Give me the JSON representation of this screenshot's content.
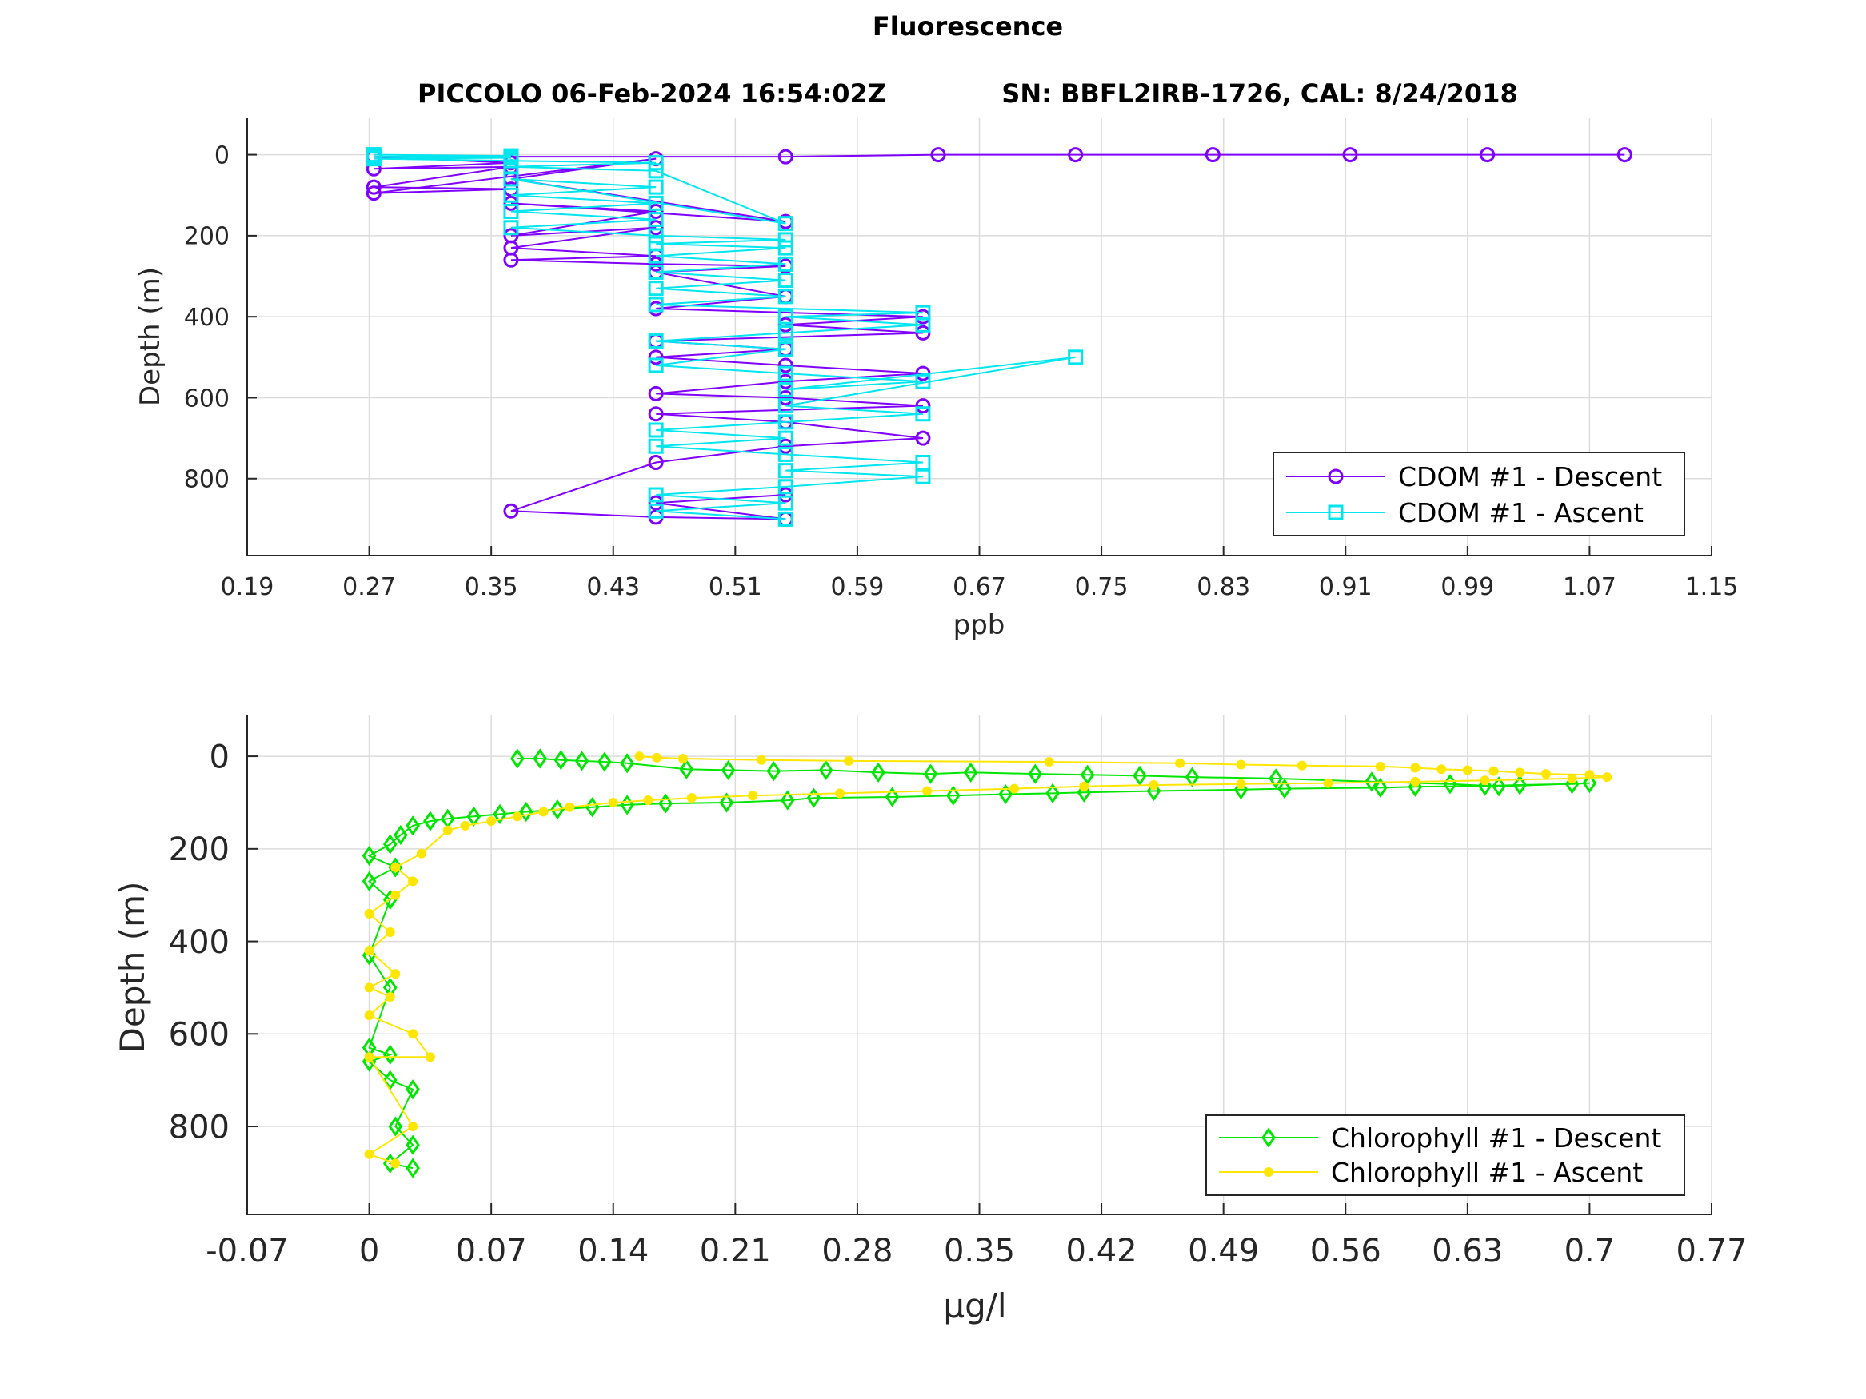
{
  "figure_title": "Fluorescence",
  "subtitle_left": "PICCOLO 06-Feb-2024 16:54:02Z",
  "subtitle_right": "SN: BBFL2IRB-1726, CAL: 8/24/2018",
  "chart_data": [
    {
      "type": "line",
      "xlabel": "ppb",
      "ylabel": "Depth (m)",
      "xlim": [
        0.19,
        1.15
      ],
      "ylim": [
        -90,
        990
      ],
      "y_reversed": true,
      "xticks": [
        "0.19",
        "0.27",
        "0.35",
        "0.43",
        "0.51",
        "0.59",
        "0.67",
        "0.75",
        "0.83",
        "0.91",
        "0.99",
        "1.07",
        "1.15"
      ],
      "yticks": [
        "0",
        "200",
        "400",
        "600",
        "800"
      ],
      "grid": true,
      "legend_position": "bottom-right",
      "series": [
        {
          "name": "CDOM #1 - Descent",
          "color": "#7f00ff",
          "marker": "circle",
          "x": [
            1.093,
            1.003,
            0.913,
            0.823,
            0.733,
            0.643,
            0.543,
            0.273,
            0.363,
            0.273,
            0.363,
            0.273,
            0.363,
            0.273,
            0.458,
            0.363,
            0.543,
            0.363,
            0.458,
            0.363,
            0.458,
            0.363,
            0.458,
            0.363,
            0.458,
            0.543,
            0.458,
            0.543,
            0.458,
            0.633,
            0.543,
            0.633,
            0.458,
            0.543,
            0.458,
            0.543,
            0.633,
            0.543,
            0.458,
            0.543,
            0.633,
            0.458,
            0.543,
            0.633,
            0.543,
            0.458,
            0.363,
            0.458,
            0.543,
            0.458,
            0.543
          ],
          "y": [
            0,
            0,
            0,
            0,
            0,
            0,
            5,
            5,
            20,
            35,
            30,
            80,
            85,
            95,
            10,
            60,
            165,
            120,
            140,
            200,
            180,
            230,
            250,
            260,
            270,
            275,
            290,
            350,
            380,
            400,
            420,
            440,
            460,
            480,
            500,
            520,
            540,
            560,
            590,
            600,
            620,
            640,
            660,
            700,
            720,
            760,
            880,
            895,
            900,
            860,
            840
          ]
        },
        {
          "name": "CDOM #1 - Ascent",
          "color": "#00e5ee",
          "marker": "square",
          "x": [
            0.543,
            0.458,
            0.543,
            0.458,
            0.543,
            0.633,
            0.543,
            0.633,
            0.543,
            0.458,
            0.543,
            0.458,
            0.543,
            0.633,
            0.543,
            0.733,
            0.543,
            0.633,
            0.543,
            0.458,
            0.543,
            0.458,
            0.543,
            0.633,
            0.543,
            0.633,
            0.458,
            0.543,
            0.458,
            0.543,
            0.458,
            0.543,
            0.458,
            0.543,
            0.458,
            0.543,
            0.458,
            0.363,
            0.458,
            0.363,
            0.458,
            0.363,
            0.458,
            0.363,
            0.543,
            0.458,
            0.363,
            0.458,
            0.363,
            0.273,
            0.363,
            0.273,
            0.363,
            0.273
          ],
          "y": [
            900,
            880,
            860,
            840,
            820,
            795,
            780,
            760,
            740,
            720,
            700,
            680,
            660,
            640,
            620,
            500,
            580,
            560,
            540,
            520,
            480,
            460,
            440,
            420,
            400,
            390,
            370,
            350,
            330,
            310,
            290,
            270,
            250,
            230,
            220,
            210,
            200,
            180,
            160,
            140,
            120,
            100,
            80,
            60,
            170,
            40,
            30,
            20,
            15,
            10,
            8,
            5,
            3,
            0
          ]
        }
      ]
    },
    {
      "type": "line",
      "xlabel": "μg/l",
      "ylabel": "Depth (m)",
      "xlim": [
        -0.07,
        0.77
      ],
      "ylim": [
        -90,
        990
      ],
      "y_reversed": true,
      "xticks": [
        "-0.07",
        "0",
        "0.07",
        "0.14",
        "0.21",
        "0.28",
        "0.35",
        "0.42",
        "0.49",
        "0.56",
        "0.63",
        "0.7",
        "0.77"
      ],
      "yticks": [
        "0",
        "200",
        "400",
        "600",
        "800"
      ],
      "grid": true,
      "legend_position": "bottom-right",
      "series": [
        {
          "name": "Chlorophyll #1 - Descent",
          "color": "#00e600",
          "marker": "diamond",
          "x": [
            0.085,
            0.098,
            0.11,
            0.122,
            0.135,
            0.148,
            0.182,
            0.206,
            0.232,
            0.262,
            0.292,
            0.322,
            0.345,
            0.382,
            0.412,
            0.442,
            0.472,
            0.52,
            0.575,
            0.62,
            0.648,
            0.7,
            0.69,
            0.66,
            0.64,
            0.6,
            0.58,
            0.525,
            0.5,
            0.45,
            0.41,
            0.392,
            0.365,
            0.335,
            0.3,
            0.255,
            0.24,
            0.205,
            0.17,
            0.148,
            0.128,
            0.108,
            0.09,
            0.075,
            0.06,
            0.045,
            0.035,
            0.025,
            0.018,
            0.012,
            0,
            0.015,
            0,
            0.012,
            0,
            0.012,
            0,
            0.012,
            0,
            0.012,
            0.025,
            0.015,
            0.025,
            0.012,
            0.025
          ],
          "y": [
            5,
            5,
            8,
            10,
            12,
            15,
            28,
            30,
            32,
            30,
            35,
            38,
            35,
            38,
            40,
            42,
            45,
            48,
            55,
            60,
            65,
            58,
            60,
            62,
            64,
            66,
            68,
            70,
            72,
            75,
            78,
            80,
            82,
            85,
            88,
            90,
            95,
            100,
            102,
            105,
            110,
            115,
            120,
            125,
            130,
            135,
            140,
            150,
            170,
            190,
            215,
            240,
            270,
            310,
            430,
            500,
            630,
            645,
            660,
            700,
            720,
            800,
            840,
            880,
            890
          ]
        },
        {
          "name": "Chlorophyll #1 - Ascent",
          "color": "#ffe600",
          "marker": "asterisk",
          "x": [
            0.015,
            0,
            0.025,
            0,
            0.035,
            0.025,
            0,
            0.012,
            0,
            0.015,
            0,
            0.012,
            0,
            0.015,
            0.025,
            0.015,
            0.03,
            0.045,
            0.055,
            0.07,
            0.085,
            0.1,
            0.115,
            0.14,
            0.16,
            0.185,
            0.22,
            0.27,
            0.32,
            0.37,
            0.41,
            0.45,
            0.5,
            0.55,
            0.6,
            0.64,
            0.69,
            0.71,
            0.7,
            0.675,
            0.66,
            0.645,
            0.63,
            0.615,
            0.6,
            0.58,
            0.535,
            0.5,
            0.465,
            0.39,
            0.275,
            0.225,
            0.18,
            0.165,
            0.155
          ],
          "y": [
            880,
            860,
            800,
            650,
            650,
            600,
            560,
            520,
            500,
            470,
            420,
            380,
            340,
            300,
            270,
            240,
            210,
            160,
            150,
            140,
            130,
            120,
            110,
            100,
            95,
            90,
            85,
            80,
            75,
            70,
            65,
            62,
            60,
            58,
            55,
            52,
            48,
            45,
            40,
            38,
            35,
            32,
            30,
            28,
            25,
            22,
            20,
            18,
            15,
            12,
            10,
            8,
            5,
            3,
            0
          ]
        }
      ]
    }
  ]
}
